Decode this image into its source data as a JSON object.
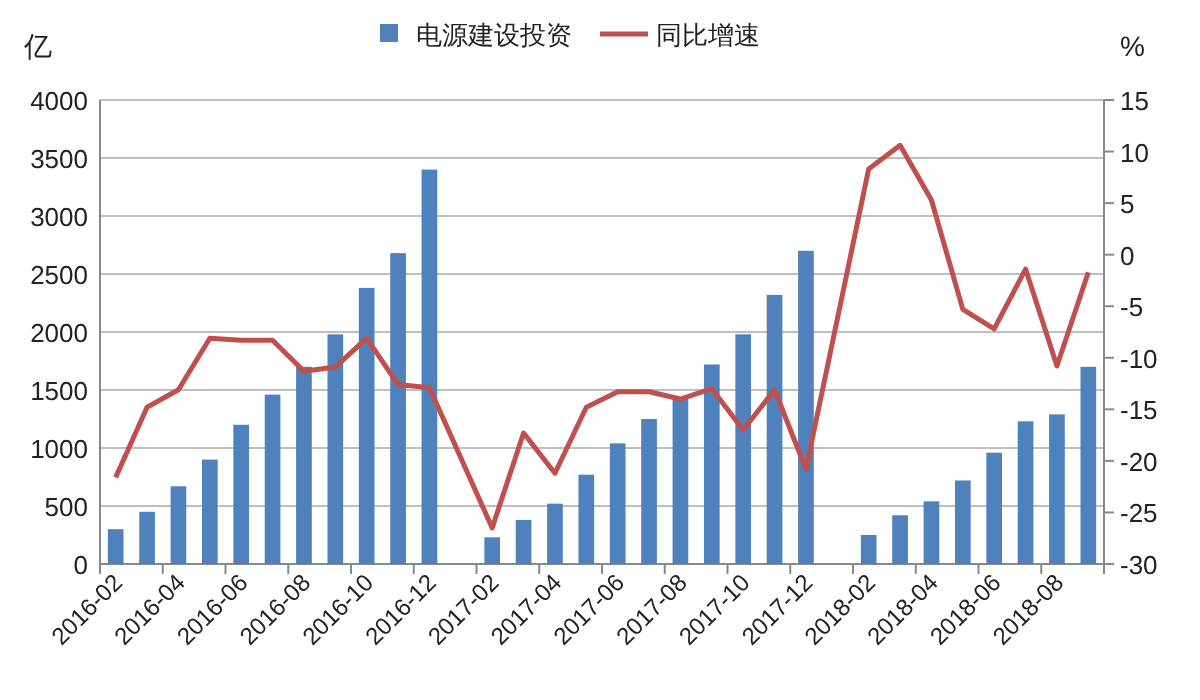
{
  "chart_data": {
    "type": "bar",
    "ylabel": "亿",
    "y2label": "%",
    "categories": [
      "2016-02",
      null,
      "2016-04",
      null,
      "2016-06",
      null,
      "2016-08",
      null,
      "2016-10",
      null,
      "2016-12",
      null,
      "2017-02",
      null,
      "2017-04",
      null,
      "2017-06",
      null,
      "2017-08",
      null,
      "2017-10",
      null,
      "2017-12",
      null,
      "2018-02",
      null,
      "2018-04",
      null,
      "2018-06",
      null,
      "2018-08",
      null
    ],
    "series": [
      {
        "name": "电源建设投资",
        "color": "#4f81bd",
        "values": [
          300,
          450,
          670,
          900,
          1200,
          1460,
          1700,
          1980,
          2380,
          2680,
          3400,
          null,
          230,
          380,
          520,
          770,
          1040,
          1250,
          1430,
          1720,
          1980,
          2320,
          2700,
          null,
          250,
          420,
          540,
          720,
          960,
          1230,
          1290,
          1700
        ]
      },
      {
        "name": "同比增速",
        "type": "line",
        "axis": "y2",
        "color": "#c0504d",
        "values": [
          -21.6,
          -14.8,
          -13.1,
          -8.1,
          -8.3,
          -8.3,
          -11.3,
          -10.9,
          -8.1,
          -12.6,
          -12.9,
          null,
          -26.5,
          -17.3,
          -21.2,
          -14.8,
          -13.3,
          -13.3,
          -14,
          -13,
          -17,
          -13.1,
          -20.8,
          null,
          8.3,
          10.6,
          5.3,
          -5.3,
          -7.2,
          -1.4,
          -10.8,
          -1.7
        ]
      }
    ],
    "ylim": [
      0,
      4000
    ],
    "yticks": [
      0,
      500,
      1000,
      1500,
      2000,
      2500,
      3000,
      3500,
      4000
    ],
    "y2lim": [
      -30,
      15
    ],
    "y2ticks": [
      -30,
      -25,
      -20,
      -15,
      -10,
      -5,
      0,
      5,
      10,
      15
    ],
    "grid": "y",
    "legend": "top"
  }
}
